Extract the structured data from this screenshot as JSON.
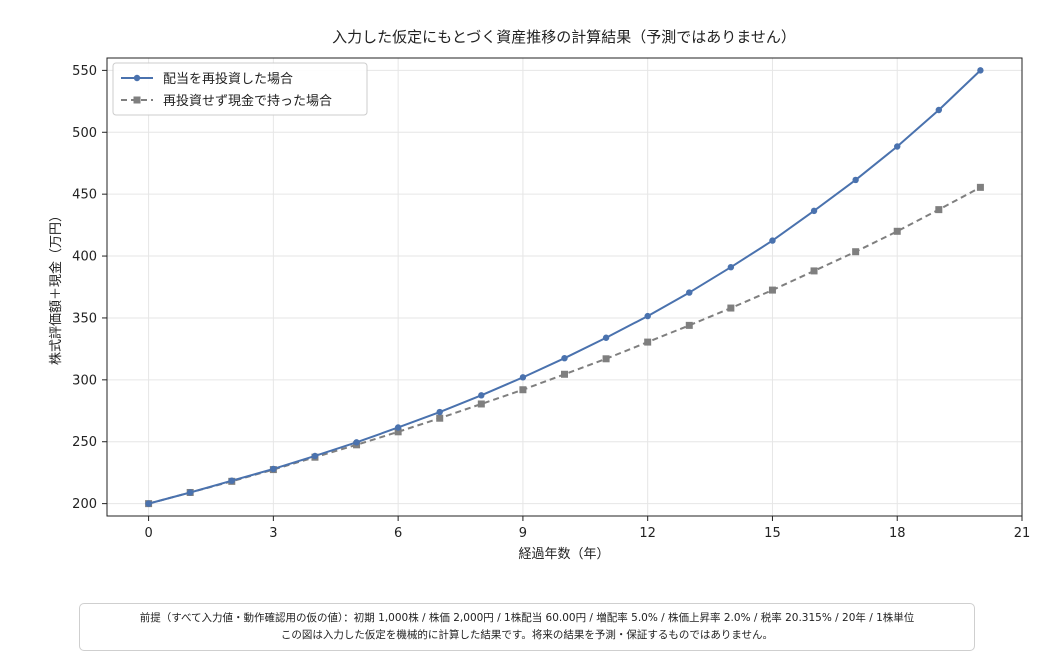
{
  "chart_data": {
    "type": "line",
    "title": "入力した仮定にもとづく資産推移の計算結果（予測ではありません）",
    "xlabel": "経過年数（年）",
    "ylabel": "株式評価額＋現金（万円）",
    "xlim": [
      -1,
      21
    ],
    "ylim": [
      190,
      560
    ],
    "xticks": [
      0,
      3,
      6,
      9,
      12,
      15,
      18,
      21
    ],
    "yticks": [
      200,
      250,
      300,
      350,
      400,
      450,
      500,
      550
    ],
    "grid": true,
    "legend_position": "top-left",
    "x": [
      0,
      1,
      2,
      3,
      4,
      5,
      6,
      7,
      8,
      9,
      10,
      11,
      12,
      13,
      14,
      15,
      16,
      17,
      18,
      19,
      20
    ],
    "series": [
      {
        "name": "配当を再投資した場合",
        "color": "#4a72ae",
        "line_style": "solid",
        "marker": "circle",
        "values": [
          200.0,
          209.0,
          218.5,
          228.0,
          238.5,
          249.5,
          261.5,
          274.0,
          287.5,
          302.0,
          317.5,
          334.0,
          351.5,
          370.5,
          391.0,
          412.5,
          436.5,
          461.5,
          488.5,
          518.0,
          550.0
        ]
      },
      {
        "name": "再投資せず現金で持った場合",
        "color": "#7f7f7f",
        "line_style": "dashed",
        "marker": "square",
        "values": [
          200.0,
          209.0,
          218.0,
          227.5,
          237.5,
          247.5,
          258.0,
          269.0,
          280.5,
          292.0,
          304.5,
          317.0,
          330.5,
          344.0,
          358.0,
          372.5,
          388.0,
          403.5,
          420.0,
          437.5,
          455.5
        ]
      }
    ]
  },
  "footnote": {
    "line1": "前提（すべて入力値・動作確認用の仮の値）：初期 1,000株 / 株価 2,000円 / 1株配当 60.00円 / 増配率 5.0% / 株価上昇率 2.0% / 税率 20.315% / 20年 / 1株単位",
    "line2": "この図は入力した仮定を機械的に計算した結果です。将来の結果を予測・保証するものではありません。"
  }
}
